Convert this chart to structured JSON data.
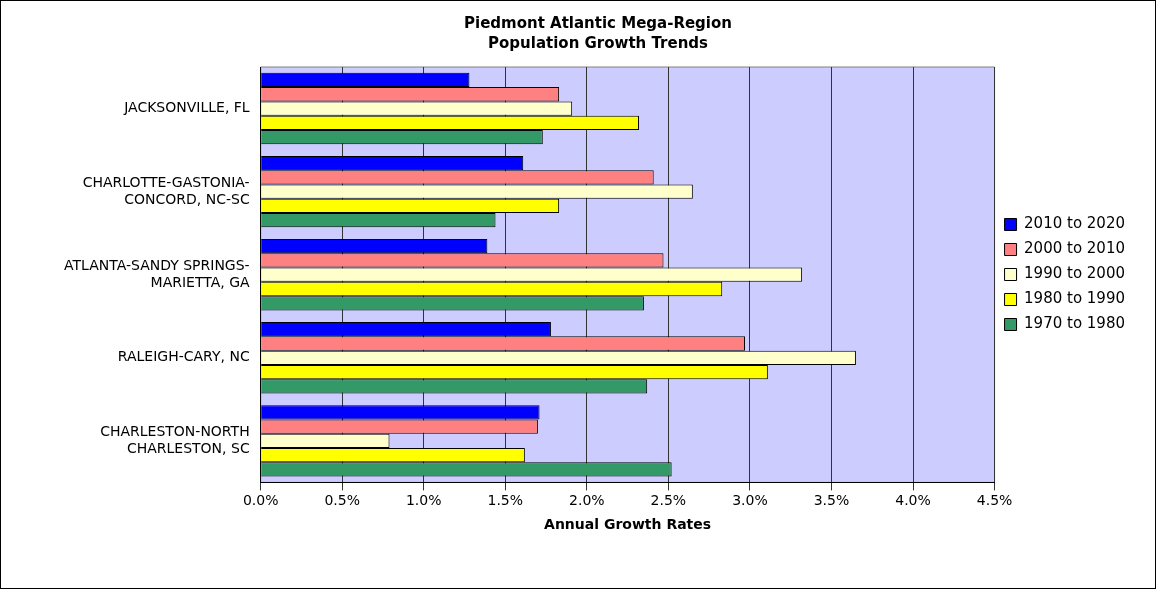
{
  "chart_data": {
    "type": "bar",
    "orientation": "horizontal",
    "title": "Piedmont Atlantic Mega-Region",
    "subtitle": "Population Growth Trends",
    "xlabel": "Annual Growth Rates",
    "categories": [
      "JACKSONVILLE, FL",
      "CHARLOTTE-GASTONIA-\nCONCORD, NC-SC",
      "ATLANTA-SANDY SPRINGS-\nMARIETTA, GA",
      "RALEIGH-CARY, NC",
      "CHARLESTON-NORTH\nCHARLESTON, SC"
    ],
    "series": [
      {
        "name": "2010 to 2020",
        "color": "#0000ff",
        "values": [
          1.28,
          1.61,
          1.39,
          1.78,
          1.71
        ]
      },
      {
        "name": "2000 to 2010",
        "color": "#ff8080",
        "values": [
          1.83,
          2.41,
          2.47,
          2.97,
          1.7
        ]
      },
      {
        "name": "1990 to 2000",
        "color": "#ffffcc",
        "values": [
          1.91,
          2.65,
          3.32,
          3.65,
          0.79
        ]
      },
      {
        "name": "1980 to 1990",
        "color": "#ffff00",
        "values": [
          2.32,
          1.83,
          2.83,
          3.11,
          1.62
        ]
      },
      {
        "name": "1970 to 1980",
        "color": "#339966",
        "values": [
          1.73,
          1.44,
          2.35,
          2.37,
          2.52
        ]
      }
    ],
    "xlim": [
      0,
      4.5
    ],
    "xticks": [
      {
        "value": 0,
        "label": "0.0%"
      },
      {
        "value": 0.5,
        "label": "0.5%"
      },
      {
        "value": 1,
        "label": "1.0%"
      },
      {
        "value": 1.5,
        "label": "1.5%"
      },
      {
        "value": 2,
        "label": "2.0%"
      },
      {
        "value": 2.5,
        "label": "2.5%"
      },
      {
        "value": 3,
        "label": "3.0%"
      },
      {
        "value": 3.5,
        "label": "3.5%"
      },
      {
        "value": 4,
        "label": "4.0%"
      },
      {
        "value": 4.5,
        "label": "4.5%"
      }
    ],
    "grid": "x",
    "legend": "right"
  }
}
